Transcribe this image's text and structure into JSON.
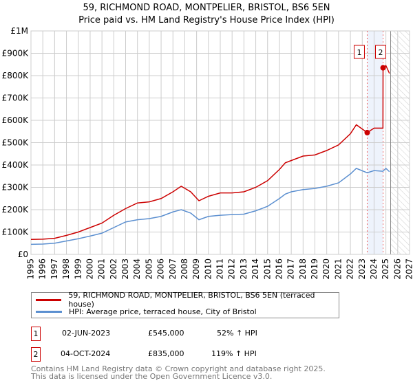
{
  "title_line1": "59, RICHMOND ROAD, MONTPELIER, BRISTOL, BS6 5EN",
  "title_line2": "Price paid vs. HM Land Registry's House Price Index (HPI)",
  "legend": {
    "red": "59, RICHMOND ROAD, MONTPELIER, BRISTOL, BS6 5EN (terraced house)",
    "blue": "HPI: Average price, terraced house, City of Bristol"
  },
  "sales": [
    {
      "num": "1",
      "date": "02-JUN-2023",
      "price": "£545,000",
      "hpi": "52% ↑ HPI"
    },
    {
      "num": "2",
      "date": "04-OCT-2024",
      "price": "£835,000",
      "hpi": "119% ↑ HPI"
    }
  ],
  "footer1": "Contains HM Land Registry data © Crown copyright and database right 2025.",
  "footer2": "This data is licensed under the Open Government Licence v3.0.",
  "chart_data": {
    "type": "line",
    "xlim": [
      1995,
      2027
    ],
    "ylim": [
      0,
      1000000
    ],
    "x_ticks": [
      "1995",
      "1996",
      "1997",
      "1998",
      "1999",
      "2000",
      "2001",
      "2002",
      "2003",
      "2004",
      "2005",
      "2006",
      "2007",
      "2008",
      "2009",
      "2010",
      "2011",
      "2012",
      "2013",
      "2014",
      "2015",
      "2016",
      "2017",
      "2018",
      "2019",
      "2020",
      "2021",
      "2022",
      "2023",
      "2024",
      "2025",
      "2026",
      "2027"
    ],
    "y_ticks": [
      {
        "v": 0,
        "l": "£0"
      },
      {
        "v": 100000,
        "l": "£100K"
      },
      {
        "v": 200000,
        "l": "£200K"
      },
      {
        "v": 300000,
        "l": "£300K"
      },
      {
        "v": 400000,
        "l": "£400K"
      },
      {
        "v": 500000,
        "l": "£500K"
      },
      {
        "v": 600000,
        "l": "£600K"
      },
      {
        "v": 700000,
        "l": "£700K"
      },
      {
        "v": 800000,
        "l": "£800K"
      },
      {
        "v": 900000,
        "l": "£900K"
      },
      {
        "v": 1000000,
        "l": "£1M"
      }
    ],
    "colors": {
      "red": "#cc0000",
      "blue": "#5b8fd0"
    },
    "sale_points": [
      {
        "x": 2023.42,
        "y": 545000,
        "label": "1"
      },
      {
        "x": 2024.76,
        "y": 835000,
        "label": "2"
      }
    ],
    "projection_start": 2025.4,
    "series": [
      {
        "name": "red",
        "x": [
          1995,
          1996,
          1997,
          1998,
          1999,
          2000,
          2001,
          2002,
          2003,
          2004,
          2005,
          2006,
          2007,
          2007.7,
          2008.5,
          2009.2,
          2010,
          2011,
          2012,
          2013,
          2014,
          2015,
          2016,
          2016.5,
          2017,
          2018,
          2019,
          2020,
          2021,
          2022,
          2022.5,
          2023.42,
          2024,
          2024.75,
          2024.76,
          2025,
          2025.3
        ],
        "y": [
          67000,
          68000,
          72000,
          85000,
          100000,
          120000,
          140000,
          175000,
          205000,
          230000,
          235000,
          250000,
          280000,
          305000,
          280000,
          240000,
          260000,
          275000,
          275000,
          280000,
          300000,
          330000,
          380000,
          410000,
          420000,
          440000,
          445000,
          465000,
          490000,
          540000,
          580000,
          545000,
          565000,
          565000,
          835000,
          845000,
          810000
        ]
      },
      {
        "name": "blue",
        "x": [
          1995,
          1996,
          1997,
          1998,
          1999,
          2000,
          2001,
          2002,
          2003,
          2004,
          2005,
          2006,
          2007,
          2007.7,
          2008.5,
          2009.2,
          2010,
          2011,
          2012,
          2013,
          2014,
          2015,
          2016,
          2016.5,
          2017,
          2018,
          2019,
          2020,
          2021,
          2022,
          2022.5,
          2023.42,
          2024,
          2024.75,
          2025,
          2025.3
        ],
        "y": [
          45000,
          46000,
          50000,
          60000,
          70000,
          82000,
          95000,
          120000,
          145000,
          155000,
          160000,
          170000,
          190000,
          200000,
          185000,
          155000,
          170000,
          175000,
          178000,
          180000,
          195000,
          215000,
          250000,
          270000,
          280000,
          290000,
          295000,
          305000,
          320000,
          360000,
          385000,
          365000,
          375000,
          372000,
          385000,
          370000
        ]
      }
    ]
  }
}
